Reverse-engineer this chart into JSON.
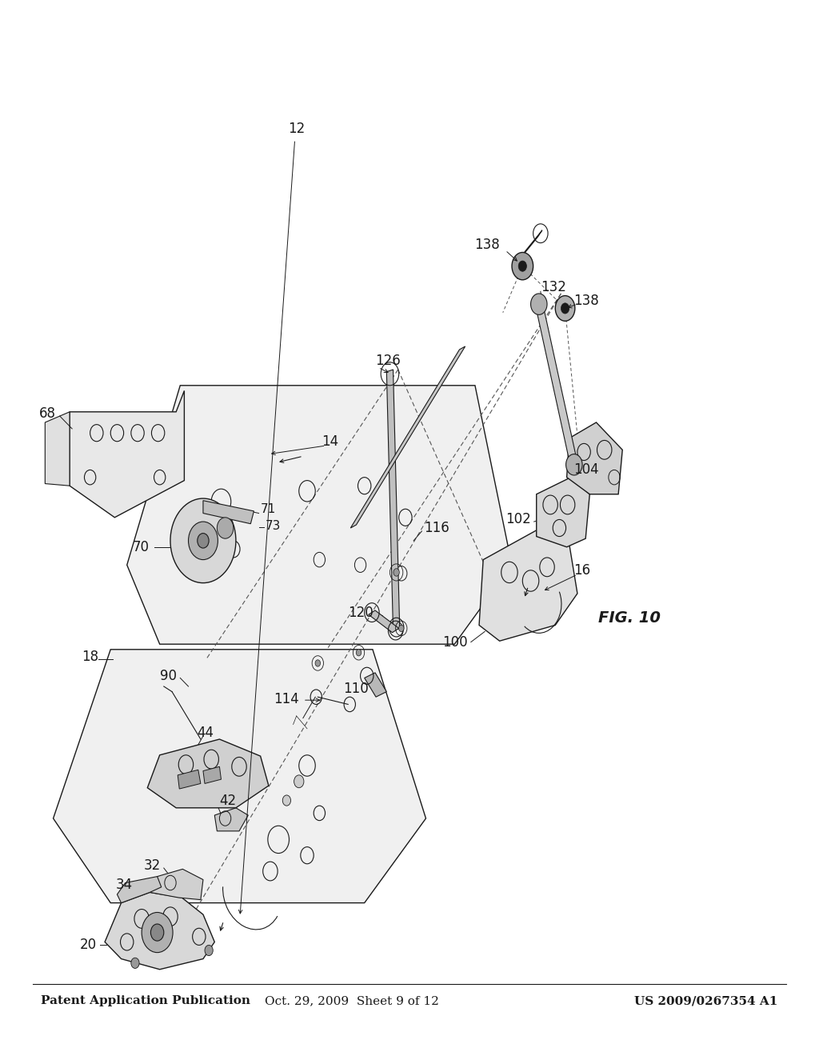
{
  "header_left": "Patent Application Publication",
  "header_middle": "Oct. 29, 2009  Sheet 9 of 12",
  "header_right": "US 2009/0267354 A1",
  "figure_label": "FIG. 10",
  "background_color": "#ffffff",
  "line_color": "#1a1a1a",
  "label_color": "#1a1a1a",
  "header_fontsize": 11,
  "label_fontsize": 12,
  "fig_label_fontsize": 14
}
